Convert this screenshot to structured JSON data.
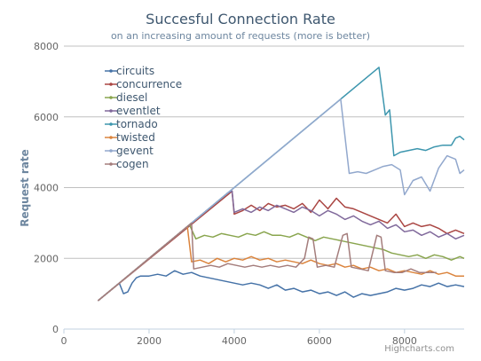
{
  "credits": "Highcharts.com",
  "chart_data": {
    "type": "line",
    "title": "Succesful Connection Rate",
    "subtitle": "on an increasing amount of requests (more is better)",
    "xlabel": "",
    "ylabel": "Request rate",
    "xlim": [
      0,
      9400
    ],
    "ylim": [
      0,
      8000
    ],
    "xticks": [
      0,
      2000,
      4000,
      6000,
      8000
    ],
    "yticks": [
      0,
      2000,
      4000,
      6000,
      8000
    ],
    "grid": "horizontal",
    "legend_position": "top-left",
    "series": [
      {
        "name": "circuits",
        "color": "#4572A7",
        "points": [
          [
            800,
            800
          ],
          [
            1300,
            1300
          ],
          [
            1400,
            1000
          ],
          [
            1500,
            1050
          ],
          [
            1600,
            1300
          ],
          [
            1700,
            1450
          ],
          [
            1800,
            1500
          ],
          [
            2000,
            1500
          ],
          [
            2200,
            1550
          ],
          [
            2400,
            1500
          ],
          [
            2600,
            1650
          ],
          [
            2800,
            1550
          ],
          [
            3000,
            1600
          ],
          [
            3200,
            1500
          ],
          [
            3400,
            1450
          ],
          [
            3600,
            1400
          ],
          [
            3800,
            1350
          ],
          [
            4000,
            1300
          ],
          [
            4200,
            1250
          ],
          [
            4400,
            1300
          ],
          [
            4600,
            1250
          ],
          [
            4800,
            1150
          ],
          [
            5000,
            1250
          ],
          [
            5200,
            1100
          ],
          [
            5400,
            1150
          ],
          [
            5600,
            1050
          ],
          [
            5800,
            1100
          ],
          [
            6000,
            1000
          ],
          [
            6200,
            1050
          ],
          [
            6400,
            950
          ],
          [
            6600,
            1050
          ],
          [
            6800,
            900
          ],
          [
            7000,
            1000
          ],
          [
            7200,
            950
          ],
          [
            7400,
            1000
          ],
          [
            7600,
            1050
          ],
          [
            7800,
            1150
          ],
          [
            8000,
            1100
          ],
          [
            8200,
            1150
          ],
          [
            8400,
            1250
          ],
          [
            8600,
            1200
          ],
          [
            8800,
            1300
          ],
          [
            9000,
            1200
          ],
          [
            9200,
            1250
          ],
          [
            9400,
            1200
          ]
        ]
      },
      {
        "name": "concurrence",
        "color": "#AA4643",
        "points": [
          [
            800,
            800
          ],
          [
            3850,
            3800
          ],
          [
            3950,
            3900
          ],
          [
            4000,
            3250
          ],
          [
            4200,
            3350
          ],
          [
            4400,
            3500
          ],
          [
            4600,
            3350
          ],
          [
            4800,
            3550
          ],
          [
            5000,
            3450
          ],
          [
            5200,
            3500
          ],
          [
            5400,
            3400
          ],
          [
            5600,
            3550
          ],
          [
            5800,
            3300
          ],
          [
            6000,
            3650
          ],
          [
            6200,
            3400
          ],
          [
            6400,
            3700
          ],
          [
            6600,
            3450
          ],
          [
            6800,
            3400
          ],
          [
            7000,
            3300
          ],
          [
            7200,
            3200
          ],
          [
            7400,
            3100
          ],
          [
            7600,
            3000
          ],
          [
            7800,
            3250
          ],
          [
            8000,
            2900
          ],
          [
            8200,
            3000
          ],
          [
            8400,
            2900
          ],
          [
            8600,
            2950
          ],
          [
            8800,
            2850
          ],
          [
            9000,
            2700
          ],
          [
            9200,
            2800
          ],
          [
            9400,
            2700
          ]
        ]
      },
      {
        "name": "diesel",
        "color": "#89A54E",
        "points": [
          [
            800,
            800
          ],
          [
            2950,
            2950
          ],
          [
            3100,
            2550
          ],
          [
            3300,
            2650
          ],
          [
            3500,
            2600
          ],
          [
            3700,
            2700
          ],
          [
            3900,
            2650
          ],
          [
            4100,
            2600
          ],
          [
            4300,
            2700
          ],
          [
            4500,
            2650
          ],
          [
            4700,
            2750
          ],
          [
            4900,
            2650
          ],
          [
            5100,
            2650
          ],
          [
            5300,
            2600
          ],
          [
            5500,
            2700
          ],
          [
            5700,
            2600
          ],
          [
            5900,
            2500
          ],
          [
            6100,
            2600
          ],
          [
            6300,
            2550
          ],
          [
            6500,
            2500
          ],
          [
            6700,
            2450
          ],
          [
            6900,
            2400
          ],
          [
            7100,
            2350
          ],
          [
            7300,
            2300
          ],
          [
            7500,
            2250
          ],
          [
            7700,
            2150
          ],
          [
            7900,
            2100
          ],
          [
            8100,
            2050
          ],
          [
            8300,
            2100
          ],
          [
            8500,
            2000
          ],
          [
            8700,
            2100
          ],
          [
            8900,
            2050
          ],
          [
            9100,
            1950
          ],
          [
            9300,
            2050
          ],
          [
            9400,
            2000
          ]
        ]
      },
      {
        "name": "eventlet",
        "color": "#80699B",
        "points": [
          [
            800,
            800
          ],
          [
            3850,
            3850
          ],
          [
            3950,
            3900
          ],
          [
            4000,
            3300
          ],
          [
            4200,
            3400
          ],
          [
            4400,
            3300
          ],
          [
            4600,
            3450
          ],
          [
            4800,
            3350
          ],
          [
            5000,
            3500
          ],
          [
            5200,
            3400
          ],
          [
            5400,
            3300
          ],
          [
            5600,
            3450
          ],
          [
            5800,
            3350
          ],
          [
            6000,
            3200
          ],
          [
            6200,
            3350
          ],
          [
            6400,
            3250
          ],
          [
            6600,
            3100
          ],
          [
            6800,
            3200
          ],
          [
            7000,
            3050
          ],
          [
            7200,
            2950
          ],
          [
            7400,
            3050
          ],
          [
            7600,
            2850
          ],
          [
            7800,
            2950
          ],
          [
            8000,
            2750
          ],
          [
            8200,
            2800
          ],
          [
            8400,
            2650
          ],
          [
            8600,
            2750
          ],
          [
            8800,
            2600
          ],
          [
            9000,
            2700
          ],
          [
            9200,
            2550
          ],
          [
            9400,
            2650
          ]
        ]
      },
      {
        "name": "tornado",
        "color": "#3D96AE",
        "points": [
          [
            800,
            800
          ],
          [
            7400,
            7400
          ],
          [
            7550,
            6050
          ],
          [
            7650,
            6200
          ],
          [
            7750,
            4900
          ],
          [
            7900,
            5000
          ],
          [
            8100,
            5050
          ],
          [
            8300,
            5100
          ],
          [
            8500,
            5050
          ],
          [
            8700,
            5150
          ],
          [
            8900,
            5200
          ],
          [
            9100,
            5200
          ],
          [
            9200,
            5400
          ],
          [
            9300,
            5450
          ],
          [
            9400,
            5350
          ]
        ]
      },
      {
        "name": "twisted",
        "color": "#DB843D",
        "points": [
          [
            800,
            800
          ],
          [
            2900,
            2900
          ],
          [
            3000,
            1900
          ],
          [
            3200,
            1950
          ],
          [
            3400,
            1850
          ],
          [
            3600,
            2000
          ],
          [
            3800,
            1900
          ],
          [
            4000,
            2000
          ],
          [
            4200,
            1950
          ],
          [
            4400,
            2050
          ],
          [
            4600,
            1950
          ],
          [
            4800,
            2000
          ],
          [
            5000,
            1900
          ],
          [
            5200,
            1950
          ],
          [
            5400,
            1900
          ],
          [
            5600,
            1850
          ],
          [
            5800,
            1950
          ],
          [
            6000,
            1850
          ],
          [
            6200,
            1800
          ],
          [
            6400,
            1850
          ],
          [
            6600,
            1750
          ],
          [
            6800,
            1800
          ],
          [
            7000,
            1700
          ],
          [
            7200,
            1750
          ],
          [
            7400,
            1650
          ],
          [
            7600,
            1700
          ],
          [
            7800,
            1600
          ],
          [
            8000,
            1650
          ],
          [
            8200,
            1600
          ],
          [
            8400,
            1550
          ],
          [
            8600,
            1650
          ],
          [
            8800,
            1550
          ],
          [
            9000,
            1600
          ],
          [
            9200,
            1500
          ],
          [
            9400,
            1500
          ]
        ]
      },
      {
        "name": "gevent",
        "color": "#92A8CD",
        "points": [
          [
            800,
            800
          ],
          [
            6500,
            6500
          ],
          [
            6700,
            4400
          ],
          [
            6900,
            4450
          ],
          [
            7100,
            4400
          ],
          [
            7300,
            4500
          ],
          [
            7500,
            4600
          ],
          [
            7700,
            4650
          ],
          [
            7900,
            4500
          ],
          [
            8000,
            3800
          ],
          [
            8200,
            4200
          ],
          [
            8400,
            4300
          ],
          [
            8600,
            3900
          ],
          [
            8800,
            4550
          ],
          [
            9000,
            4900
          ],
          [
            9200,
            4800
          ],
          [
            9300,
            4400
          ],
          [
            9400,
            4500
          ]
        ]
      },
      {
        "name": "cogen",
        "color": "#A47D7C",
        "points": [
          [
            800,
            800
          ],
          [
            3000,
            3000
          ],
          [
            3050,
            1700
          ],
          [
            3250,
            1750
          ],
          [
            3450,
            1800
          ],
          [
            3650,
            1750
          ],
          [
            3850,
            1850
          ],
          [
            4050,
            1800
          ],
          [
            4250,
            1750
          ],
          [
            4450,
            1800
          ],
          [
            4650,
            1750
          ],
          [
            4850,
            1800
          ],
          [
            5050,
            1750
          ],
          [
            5250,
            1800
          ],
          [
            5450,
            1750
          ],
          [
            5650,
            2000
          ],
          [
            5750,
            2600
          ],
          [
            5850,
            2550
          ],
          [
            5950,
            1750
          ],
          [
            6150,
            1800
          ],
          [
            6350,
            1750
          ],
          [
            6550,
            2650
          ],
          [
            6650,
            2700
          ],
          [
            6750,
            1750
          ],
          [
            6950,
            1700
          ],
          [
            7150,
            1650
          ],
          [
            7350,
            2650
          ],
          [
            7450,
            2600
          ],
          [
            7550,
            1650
          ],
          [
            7750,
            1600
          ],
          [
            7950,
            1600
          ],
          [
            8150,
            1700
          ],
          [
            8350,
            1600
          ],
          [
            8550,
            1600
          ],
          [
            8750,
            1600
          ]
        ]
      }
    ]
  }
}
